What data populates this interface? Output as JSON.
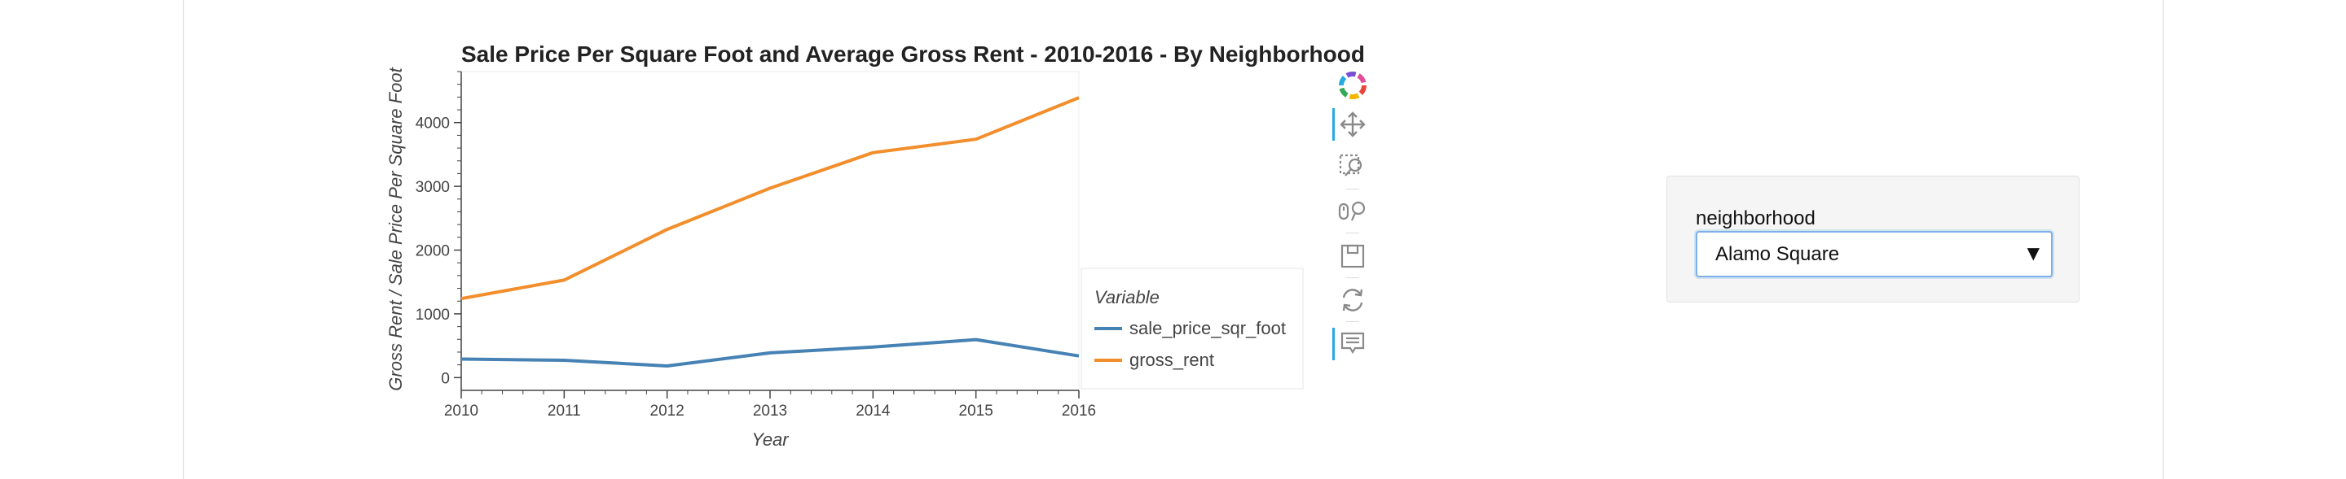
{
  "chart_data": {
    "type": "line",
    "title": "Sale Price Per Square Foot and Average Gross Rent - 2010-2016 - By Neighborhood",
    "xlabel": "Year",
    "ylabel": "Gross Rent / Sale Price Per Square Foot",
    "x": [
      2010,
      2011,
      2012,
      2013,
      2014,
      2015,
      2016
    ],
    "xlim": [
      2010,
      2016
    ],
    "ylim": [
      -200,
      4800
    ],
    "yticks": [
      0,
      1000,
      2000,
      3000,
      4000
    ],
    "legend_title": "Variable",
    "series": [
      {
        "name": "sale_price_sqr_foot",
        "color": "#4682b4",
        "values": [
          291,
          272,
          183,
          388,
          478,
          596,
          340
        ]
      },
      {
        "name": "gross_rent",
        "color": "#f28e2b",
        "values": [
          1239,
          1530,
          2324,
          2971,
          3528,
          3739,
          4390
        ]
      }
    ]
  },
  "widget": {
    "label": "neighborhood",
    "selected": "Alamo Square",
    "arrow": "▼"
  },
  "toolbar": {
    "tools": [
      "bokeh-logo-icon",
      "pan-icon",
      "box-zoom-icon",
      "wheel-zoom-icon",
      "save-icon",
      "reset-icon",
      "hover-icon"
    ]
  }
}
